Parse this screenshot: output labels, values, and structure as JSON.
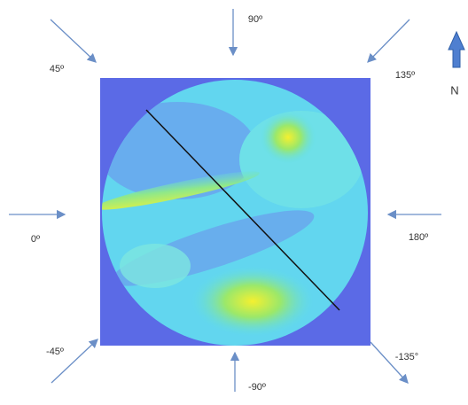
{
  "directions": [
    {
      "label": "90º"
    },
    {
      "label": "45º"
    },
    {
      "label": "135º"
    },
    {
      "label": "0º"
    },
    {
      "label": "180º"
    },
    {
      "label": "-45º"
    },
    {
      "label": "-135°"
    },
    {
      "label": "-90º"
    }
  ],
  "north": {
    "label": "N"
  }
}
